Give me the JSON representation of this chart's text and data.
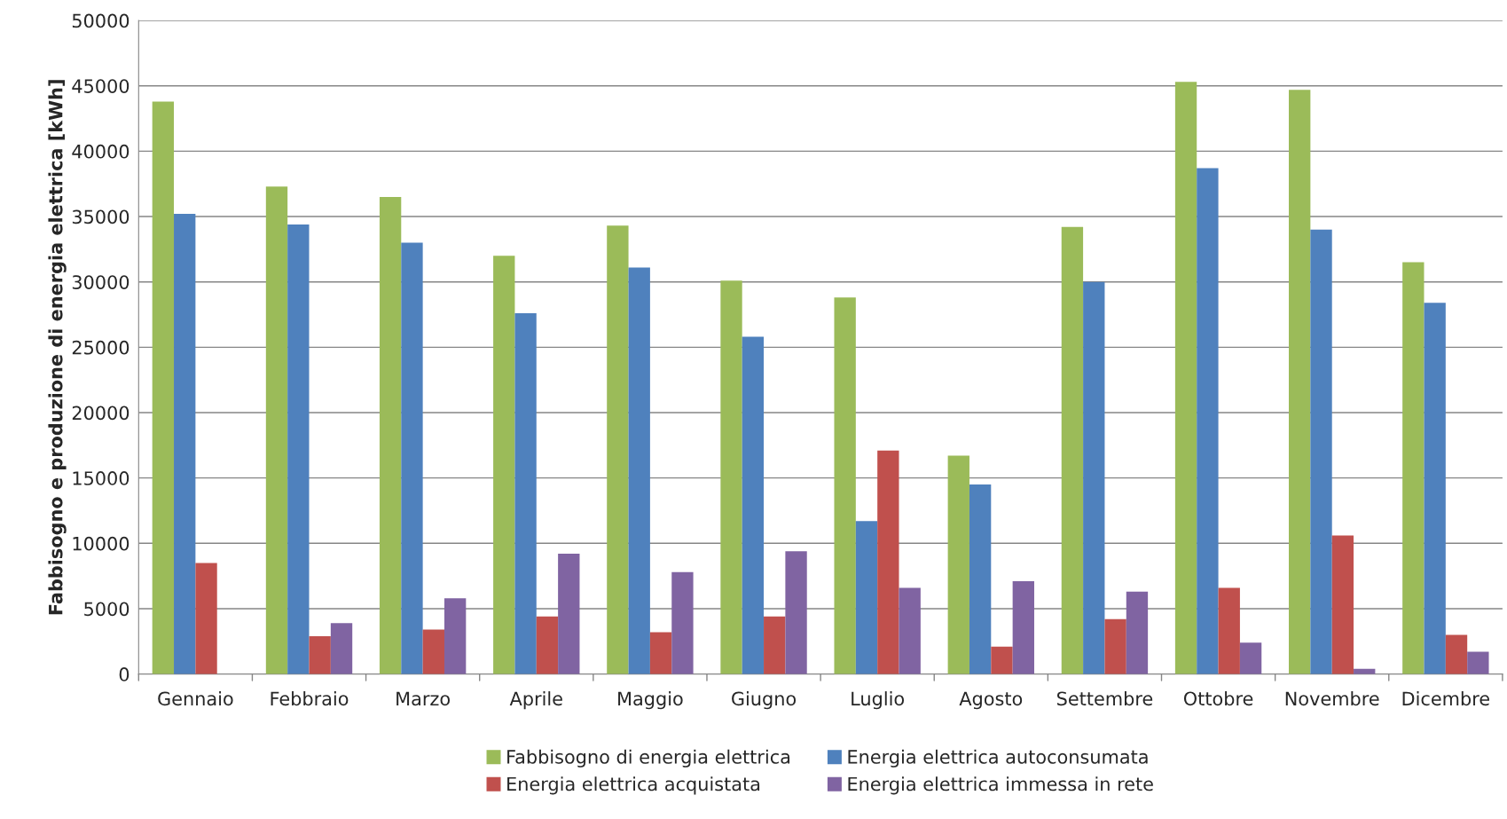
{
  "chart_data": {
    "type": "bar",
    "ylabel": "Fabbisogno e produzione di energia elettrica [kWh]",
    "categories": [
      "Gennaio",
      "Febbraio",
      "Marzo",
      "Aprile",
      "Maggio",
      "Giugno",
      "Luglio",
      "Agosto",
      "Settembre",
      "Ottobre",
      "Novembre",
      "Dicembre"
    ],
    "series": [
      {
        "name": "Fabbisogno di energia elettrica",
        "color": "#9bbb59",
        "values": [
          43800,
          37300,
          36500,
          32000,
          34300,
          30100,
          28800,
          16700,
          34200,
          45300,
          44700,
          31500
        ]
      },
      {
        "name": "Energia elettrica autoconsumata",
        "color": "#4f81bd",
        "values": [
          35200,
          34400,
          33000,
          27600,
          31100,
          25800,
          11700,
          14500,
          30000,
          38700,
          34000,
          28400
        ]
      },
      {
        "name": "Energia elettrica acquistata",
        "color": "#c0504d",
        "values": [
          8500,
          2900,
          3400,
          4400,
          3200,
          4400,
          17100,
          2100,
          4200,
          6600,
          10600,
          3000
        ]
      },
      {
        "name": "Energia elettrica immessa in rete",
        "color": "#8064a2",
        "values": [
          null,
          3900,
          5800,
          9200,
          7800,
          9400,
          6600,
          7100,
          6300,
          2400,
          400,
          1700
        ]
      }
    ],
    "ylim": [
      0,
      50000
    ],
    "yticks": [
      0,
      5000,
      10000,
      15000,
      20000,
      25000,
      30000,
      35000,
      40000,
      45000,
      50000
    ],
    "grid": "y",
    "legend": "bottom"
  }
}
